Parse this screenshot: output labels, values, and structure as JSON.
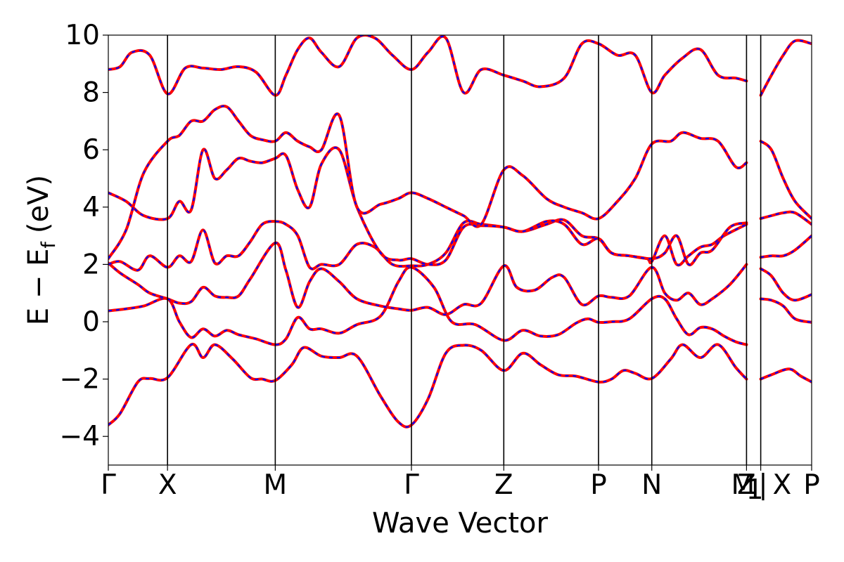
{
  "chart_data": {
    "type": "line",
    "title": "",
    "xlabel": "Wave Vector",
    "ylabel": "E − E",
    "ylabel_sub": "f",
    "ylabel_unit": "(eV)",
    "ylim": [
      -5,
      10
    ],
    "yticks": [
      -4,
      -2,
      0,
      2,
      4,
      6,
      8,
      10
    ],
    "ytick_labels": [
      "−4",
      "−2",
      "0",
      "2",
      "4",
      "6",
      "8",
      "10"
    ],
    "xlim": [
      0,
      5.94
    ],
    "kpoints": [
      {
        "label": "Γ",
        "x": 0.0
      },
      {
        "label": "X",
        "x": 0.5
      },
      {
        "label": "M",
        "x": 1.41
      },
      {
        "label": "Γ",
        "x": 2.56
      },
      {
        "label": "Z",
        "x": 3.34
      },
      {
        "label": "P",
        "x": 4.14
      },
      {
        "label": "N",
        "x": 4.59
      },
      {
        "label": "Z",
        "x": 5.39
      },
      {
        "label": "M",
        "x": 5.39
      },
      {
        "label": "X",
        "x": 5.51
      },
      {
        "label": "P",
        "x": 5.94
      }
    ],
    "kpoint_tick_labels": [
      "Γ",
      "X",
      "M",
      "Γ",
      "Z",
      "P",
      "N",
      "Z",
      "M",
      "1",
      "|",
      "X",
      "P"
    ],
    "grid": false,
    "legend": "none",
    "series": [
      {
        "color": "#ff0000",
        "style": "solid",
        "bands": "see_bands"
      },
      {
        "color": "#0000ff",
        "style": "dashed",
        "bands": "see_bands"
      }
    ],
    "bands": [
      {
        "x": [
          0,
          0.1,
          0.25,
          0.35,
          0.5,
          0.7,
          0.8,
          0.9,
          1.05,
          1.2,
          1.3,
          1.41,
          1.55,
          1.65,
          1.8,
          1.95,
          2.1,
          2.3,
          2.45,
          2.56,
          2.7,
          2.85,
          3.0,
          3.15,
          3.34,
          3.5,
          3.65,
          3.8,
          3.95,
          4.14,
          4.25,
          4.35,
          4.45,
          4.59,
          4.75,
          4.85,
          5.0,
          5.15,
          5.3,
          5.39
        ],
        "y": [
          -3.6,
          -3.2,
          -2.1,
          -1.98,
          -1.95,
          -0.8,
          -1.25,
          -0.8,
          -1.3,
          -1.95,
          -2.0,
          -2.05,
          -1.5,
          -0.9,
          -1.2,
          -1.25,
          -1.2,
          -2.6,
          -3.5,
          -3.6,
          -2.7,
          -1.1,
          -0.82,
          -1.0,
          -1.7,
          -1.1,
          -1.5,
          -1.85,
          -1.9,
          -2.1,
          -2.0,
          -1.7,
          -1.8,
          -1.98,
          -1.3,
          -0.8,
          -1.25,
          -0.8,
          -1.6,
          -2.0
        ]
      },
      {
        "x": [
          5.51,
          5.6,
          5.75,
          5.85,
          5.94
        ],
        "y": [
          -2.0,
          -1.85,
          -1.65,
          -1.9,
          -2.1
        ]
      },
      {
        "x": [
          0,
          0.15,
          0.3,
          0.5,
          0.6,
          0.7,
          0.8,
          0.9,
          1.0,
          1.1,
          1.25,
          1.41,
          1.5,
          1.6,
          1.7,
          1.8,
          1.95,
          2.1,
          2.3,
          2.45,
          2.56,
          2.75,
          2.9,
          3.1,
          3.34,
          3.5,
          3.65,
          3.8,
          3.95,
          4.05,
          4.14,
          4.25,
          4.4,
          4.59,
          4.7,
          4.8,
          4.9,
          5.0,
          5.1,
          5.2,
          5.3,
          5.39
        ],
        "y": [
          0.38,
          0.45,
          0.55,
          0.8,
          0.0,
          -0.55,
          -0.25,
          -0.5,
          -0.3,
          -0.45,
          -0.6,
          -0.8,
          -0.6,
          0.15,
          -0.25,
          -0.25,
          -0.4,
          -0.1,
          0.2,
          1.4,
          1.9,
          1.2,
          0.0,
          -0.1,
          -0.65,
          -0.3,
          -0.5,
          -0.45,
          -0.05,
          0.1,
          -0.02,
          0.0,
          0.1,
          0.8,
          0.8,
          0.1,
          -0.45,
          -0.2,
          -0.25,
          -0.5,
          -0.7,
          -0.8
        ]
      },
      {
        "x": [
          5.51,
          5.6,
          5.7,
          5.8,
          5.94
        ],
        "y": [
          0.8,
          0.75,
          0.55,
          0.1,
          -0.02
        ]
      },
      {
        "x": [
          0,
          0.1,
          0.25,
          0.35,
          0.5,
          0.6,
          0.7,
          0.8,
          0.9,
          1.0,
          1.1,
          1.2,
          1.41,
          1.5,
          1.6,
          1.7,
          1.8,
          1.95,
          2.1,
          2.3,
          2.45,
          2.56,
          2.7,
          2.85,
          3.0,
          3.15,
          3.34,
          3.45,
          3.6,
          3.75,
          3.85,
          4.0,
          4.14,
          4.25,
          4.4,
          4.59,
          4.7,
          4.8,
          4.9,
          5.0,
          5.1,
          5.25,
          5.39
        ],
        "y": [
          2.05,
          1.7,
          1.3,
          1.0,
          0.8,
          0.65,
          0.7,
          1.2,
          0.9,
          0.85,
          0.9,
          1.5,
          2.75,
          1.8,
          0.5,
          1.4,
          1.85,
          1.4,
          0.8,
          0.55,
          0.45,
          0.4,
          0.5,
          0.25,
          0.6,
          0.65,
          1.95,
          1.2,
          1.1,
          1.55,
          1.55,
          0.6,
          0.9,
          0.85,
          0.9,
          1.9,
          1.0,
          0.75,
          1.0,
          0.6,
          0.8,
          1.3,
          2.0
        ]
      },
      {
        "x": [
          5.51,
          5.6,
          5.7,
          5.8,
          5.94
        ],
        "y": [
          1.85,
          1.6,
          1.0,
          0.75,
          0.95
        ]
      },
      {
        "x": [
          0,
          0.1,
          0.25,
          0.35,
          0.5,
          0.6,
          0.7,
          0.8,
          0.9,
          1.0,
          1.1,
          1.2,
          1.3,
          1.41,
          1.5,
          1.6,
          1.7,
          1.8,
          1.95,
          2.1,
          2.25,
          2.4,
          2.56,
          2.7,
          2.85,
          3.0,
          3.15,
          3.34,
          3.5,
          3.7,
          3.85,
          4.0,
          4.14,
          4.25,
          4.4,
          4.55,
          4.59,
          4.7,
          4.8,
          4.9,
          5.0,
          5.1,
          5.2,
          5.39
        ],
        "y": [
          2.0,
          2.1,
          1.8,
          2.3,
          1.9,
          2.3,
          2.1,
          3.2,
          2.05,
          2.3,
          2.3,
          2.8,
          3.4,
          3.5,
          3.4,
          3.0,
          1.9,
          2.0,
          2.0,
          2.7,
          2.6,
          2.0,
          1.95,
          2.0,
          2.4,
          3.45,
          3.4,
          3.3,
          3.15,
          3.4,
          3.55,
          3.0,
          2.9,
          2.4,
          2.3,
          2.2,
          2.1,
          3.0,
          2.0,
          2.3,
          2.6,
          2.7,
          3.0,
          3.4
        ]
      },
      {
        "x": [
          5.51,
          5.6,
          5.7,
          5.8,
          5.94
        ],
        "y": [
          2.25,
          2.3,
          2.3,
          2.5,
          3.0
        ]
      },
      {
        "x": [
          0,
          0.15,
          0.3,
          0.5,
          0.6,
          0.7,
          0.8,
          0.9,
          1.0,
          1.1,
          1.2,
          1.3,
          1.41,
          1.5,
          1.6,
          1.7,
          1.8,
          1.95,
          2.1,
          2.3,
          2.45,
          2.56,
          2.7,
          2.85,
          3.0,
          3.15,
          3.34,
          3.5,
          3.7,
          3.85,
          4.0,
          4.14,
          4.25,
          4.4,
          4.59,
          4.7,
          4.8,
          4.9,
          5.0,
          5.1,
          5.25,
          5.39
        ],
        "y": [
          4.5,
          4.2,
          3.7,
          3.6,
          4.2,
          3.9,
          6.0,
          5.0,
          5.3,
          5.7,
          5.6,
          5.55,
          5.7,
          5.8,
          4.6,
          4.0,
          5.5,
          6.0,
          4.0,
          2.4,
          2.15,
          2.2,
          2.0,
          2.15,
          3.3,
          3.35,
          3.3,
          3.15,
          3.5,
          3.4,
          2.7,
          2.9,
          2.4,
          2.3,
          2.2,
          2.4,
          3.0,
          2.0,
          2.4,
          2.5,
          3.3,
          3.45
        ]
      },
      {
        "x": [
          5.51,
          5.6,
          5.7,
          5.8,
          5.94
        ],
        "y": [
          3.6,
          3.7,
          3.8,
          3.8,
          3.4
        ]
      },
      {
        "x": [
          0,
          0.15,
          0.3,
          0.5,
          0.6,
          0.7,
          0.8,
          0.9,
          1.0,
          1.1,
          1.2,
          1.3,
          1.41,
          1.5,
          1.6,
          1.7,
          1.8,
          1.95,
          2.1,
          2.3,
          2.45,
          2.56,
          2.7,
          2.85,
          3.0,
          3.15,
          3.34,
          3.5,
          3.7,
          3.85,
          4.0,
          4.14,
          4.3,
          4.45,
          4.59,
          4.75,
          4.85,
          5.0,
          5.15,
          5.3,
          5.39
        ],
        "y": [
          2.2,
          3.2,
          5.2,
          6.3,
          6.5,
          7.0,
          7.0,
          7.4,
          7.5,
          7.0,
          6.5,
          6.35,
          6.3,
          6.6,
          6.3,
          6.1,
          6.0,
          7.2,
          4.0,
          4.1,
          4.3,
          4.5,
          4.3,
          4.0,
          3.7,
          3.4,
          5.3,
          5.1,
          4.3,
          4.0,
          3.8,
          3.6,
          4.2,
          5.0,
          6.2,
          6.3,
          6.6,
          6.4,
          6.3,
          5.4,
          5.55
        ]
      },
      {
        "x": [
          5.51,
          5.6,
          5.7,
          5.8,
          5.94
        ],
        "y": [
          6.3,
          6.0,
          5.0,
          4.2,
          3.6
        ]
      },
      {
        "x": [
          0,
          0.1,
          0.2,
          0.35,
          0.5,
          0.65,
          0.8,
          0.95,
          1.1,
          1.25,
          1.41,
          1.5,
          1.6,
          1.7,
          1.8,
          1.95,
          2.1,
          2.25,
          2.4,
          2.56,
          2.7,
          2.85,
          3.0,
          3.15,
          3.34,
          3.5,
          3.65,
          3.85,
          4.0,
          4.14,
          4.3,
          4.45,
          4.59,
          4.7,
          4.85,
          5.0,
          5.15,
          5.3,
          5.39
        ],
        "y": [
          8.8,
          8.9,
          9.4,
          9.3,
          7.95,
          8.85,
          8.85,
          8.8,
          8.9,
          8.7,
          7.9,
          8.6,
          9.5,
          9.9,
          9.4,
          8.9,
          9.9,
          9.9,
          9.3,
          8.8,
          9.4,
          9.9,
          8.0,
          8.8,
          8.6,
          8.4,
          8.2,
          8.5,
          9.7,
          9.7,
          9.3,
          9.3,
          8.0,
          8.6,
          9.2,
          9.5,
          8.6,
          8.5,
          8.4
        ]
      },
      {
        "x": [
          5.51,
          5.6,
          5.7,
          5.8,
          5.94
        ],
        "y": [
          7.9,
          8.6,
          9.3,
          9.8,
          9.7
        ]
      }
    ]
  }
}
